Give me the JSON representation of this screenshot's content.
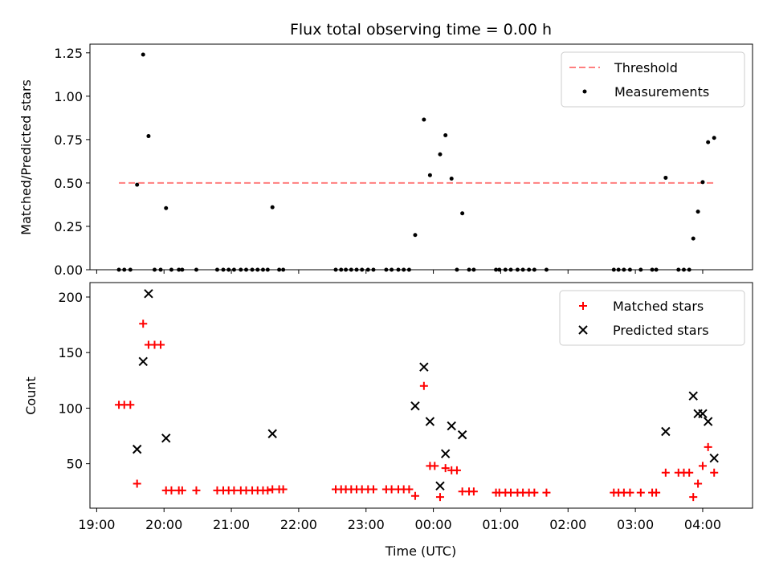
{
  "chart_data": {
    "title": "Flux total observing time = 0.00 h",
    "xlabel": "Time (UTC)",
    "x_axis": {
      "type": "time",
      "ticks": [
        "19:00",
        "20:00",
        "21:00",
        "22:00",
        "23:00",
        "00:00",
        "01:00",
        "02:00",
        "03:00",
        "04:00"
      ],
      "range_hours": [
        18.9,
        28.74
      ]
    },
    "panels": [
      {
        "id": "ratio",
        "type": "scatter",
        "ylabel": "Matched/Predicted stars",
        "ylim": [
          0,
          1.3
        ],
        "yticks": [
          "0.00",
          "0.25",
          "0.50",
          "0.75",
          "1.00",
          "1.25"
        ],
        "ytick_values": [
          0,
          0.25,
          0.5,
          0.75,
          1.0,
          1.25
        ],
        "legend": {
          "placement": "upper right",
          "entries": [
            "Threshold",
            "Measurements"
          ]
        },
        "threshold": {
          "name": "Threshold",
          "value": 0.5,
          "x_start": 19.33,
          "x_end": 28.17,
          "color": "#ff7f7f",
          "style": "dashed"
        },
        "series": [
          {
            "name": "Measurements",
            "marker": "dot",
            "color": "#000000",
            "points": [
              [
                19.33,
                0
              ],
              [
                19.41,
                0
              ],
              [
                19.5,
                0
              ],
              [
                19.6,
                0.49
              ],
              [
                19.69,
                1.24
              ],
              [
                19.77,
                0.77
              ],
              [
                19.86,
                0
              ],
              [
                19.95,
                0
              ],
              [
                20.03,
                0.355
              ],
              [
                20.11,
                0
              ],
              [
                20.22,
                0
              ],
              [
                20.27,
                0
              ],
              [
                20.48,
                0
              ],
              [
                20.79,
                0
              ],
              [
                20.88,
                0
              ],
              [
                20.96,
                0
              ],
              [
                21.04,
                0
              ],
              [
                21.14,
                0
              ],
              [
                21.22,
                0
              ],
              [
                21.31,
                0
              ],
              [
                21.39,
                0
              ],
              [
                21.47,
                0
              ],
              [
                21.54,
                0
              ],
              [
                21.61,
                0.36
              ],
              [
                21.71,
                0
              ],
              [
                21.77,
                0
              ],
              [
                22.55,
                0
              ],
              [
                22.63,
                0
              ],
              [
                22.7,
                0
              ],
              [
                22.78,
                0
              ],
              [
                22.86,
                0
              ],
              [
                22.94,
                0
              ],
              [
                23.03,
                0
              ],
              [
                23.11,
                0
              ],
              [
                23.3,
                0
              ],
              [
                23.38,
                0
              ],
              [
                23.48,
                0
              ],
              [
                23.56,
                0
              ],
              [
                23.64,
                0
              ],
              [
                23.73,
                0.2
              ],
              [
                23.86,
                0.865
              ],
              [
                23.95,
                0.545
              ],
              [
                24.1,
                0.665
              ],
              [
                24.18,
                0.775
              ],
              [
                24.27,
                0.525
              ],
              [
                24.35,
                0
              ],
              [
                24.43,
                0.325
              ],
              [
                24.53,
                0
              ],
              [
                24.6,
                0
              ],
              [
                24.93,
                0
              ],
              [
                24.98,
                0
              ],
              [
                25.07,
                0
              ],
              [
                25.15,
                0
              ],
              [
                25.25,
                0
              ],
              [
                25.33,
                0
              ],
              [
                25.42,
                0
              ],
              [
                25.5,
                0
              ],
              [
                25.68,
                0
              ],
              [
                26.68,
                0
              ],
              [
                26.75,
                0
              ],
              [
                26.83,
                0
              ],
              [
                26.92,
                0
              ],
              [
                27.08,
                0
              ],
              [
                27.25,
                0
              ],
              [
                27.31,
                0
              ],
              [
                27.45,
                0.53
              ],
              [
                27.64,
                0
              ],
              [
                27.72,
                0
              ],
              [
                27.8,
                0
              ],
              [
                27.86,
                0.18
              ],
              [
                27.93,
                0.335
              ],
              [
                28.0,
                0.505
              ],
              [
                28.08,
                0.735
              ],
              [
                28.17,
                0.76
              ]
            ]
          }
        ]
      },
      {
        "id": "counts",
        "type": "scatter",
        "ylabel": "Count",
        "ylim": [
          10,
          213
        ],
        "yticks": [
          "50",
          "100",
          "150",
          "200"
        ],
        "ytick_values": [
          50,
          100,
          150,
          200
        ],
        "legend": {
          "placement": "upper right",
          "entries": [
            "Matched stars",
            "Predicted stars"
          ]
        },
        "series": [
          {
            "name": "Matched stars",
            "marker": "plus",
            "color": "#ff0000",
            "points": [
              [
                19.33,
                103
              ],
              [
                19.41,
                103
              ],
              [
                19.5,
                103
              ],
              [
                19.6,
                32
              ],
              [
                19.69,
                176
              ],
              [
                19.77,
                157
              ],
              [
                19.86,
                157
              ],
              [
                19.95,
                157
              ],
              [
                20.03,
                26
              ],
              [
                20.11,
                26
              ],
              [
                20.22,
                26
              ],
              [
                20.27,
                26
              ],
              [
                20.48,
                26
              ],
              [
                20.79,
                26
              ],
              [
                20.88,
                26
              ],
              [
                20.96,
                26
              ],
              [
                21.04,
                26
              ],
              [
                21.14,
                26
              ],
              [
                21.22,
                26
              ],
              [
                21.31,
                26
              ],
              [
                21.39,
                26
              ],
              [
                21.47,
                26
              ],
              [
                21.54,
                26
              ],
              [
                21.61,
                27
              ],
              [
                21.71,
                27
              ],
              [
                21.77,
                27
              ],
              [
                22.55,
                27
              ],
              [
                22.63,
                27
              ],
              [
                22.7,
                27
              ],
              [
                22.78,
                27
              ],
              [
                22.86,
                27
              ],
              [
                22.94,
                27
              ],
              [
                23.03,
                27
              ],
              [
                23.11,
                27
              ],
              [
                23.3,
                27
              ],
              [
                23.38,
                27
              ],
              [
                23.48,
                27
              ],
              [
                23.56,
                27
              ],
              [
                23.64,
                27
              ],
              [
                23.73,
                21
              ],
              [
                23.86,
                120
              ],
              [
                23.95,
                48
              ],
              [
                24.02,
                48
              ],
              [
                24.1,
                20
              ],
              [
                24.18,
                46
              ],
              [
                24.27,
                44
              ],
              [
                24.35,
                44
              ],
              [
                24.43,
                25
              ],
              [
                24.53,
                25
              ],
              [
                24.6,
                25
              ],
              [
                24.93,
                24
              ],
              [
                24.98,
                24
              ],
              [
                25.07,
                24
              ],
              [
                25.15,
                24
              ],
              [
                25.25,
                24
              ],
              [
                25.33,
                24
              ],
              [
                25.42,
                24
              ],
              [
                25.5,
                24
              ],
              [
                25.68,
                24
              ],
              [
                26.68,
                24
              ],
              [
                26.75,
                24
              ],
              [
                26.83,
                24
              ],
              [
                26.92,
                24
              ],
              [
                27.08,
                24
              ],
              [
                27.25,
                24
              ],
              [
                27.31,
                24
              ],
              [
                27.45,
                42
              ],
              [
                27.64,
                42
              ],
              [
                27.72,
                42
              ],
              [
                27.8,
                42
              ],
              [
                27.86,
                20
              ],
              [
                27.93,
                32
              ],
              [
                28.0,
                48
              ],
              [
                28.08,
                65
              ],
              [
                28.17,
                42
              ]
            ]
          },
          {
            "name": "Predicted stars",
            "marker": "x",
            "color": "#000000",
            "points": [
              [
                19.6,
                63
              ],
              [
                19.69,
                142
              ],
              [
                19.77,
                203
              ],
              [
                20.03,
                73
              ],
              [
                21.61,
                77
              ],
              [
                23.73,
                102
              ],
              [
                23.86,
                137
              ],
              [
                23.95,
                88
              ],
              [
                24.1,
                30
              ],
              [
                24.18,
                59
              ],
              [
                24.27,
                84
              ],
              [
                24.43,
                76
              ],
              [
                27.45,
                79
              ],
              [
                27.86,
                111
              ],
              [
                27.93,
                95
              ],
              [
                28.0,
                95
              ],
              [
                28.08,
                88
              ],
              [
                28.17,
                55
              ]
            ]
          }
        ]
      }
    ]
  }
}
